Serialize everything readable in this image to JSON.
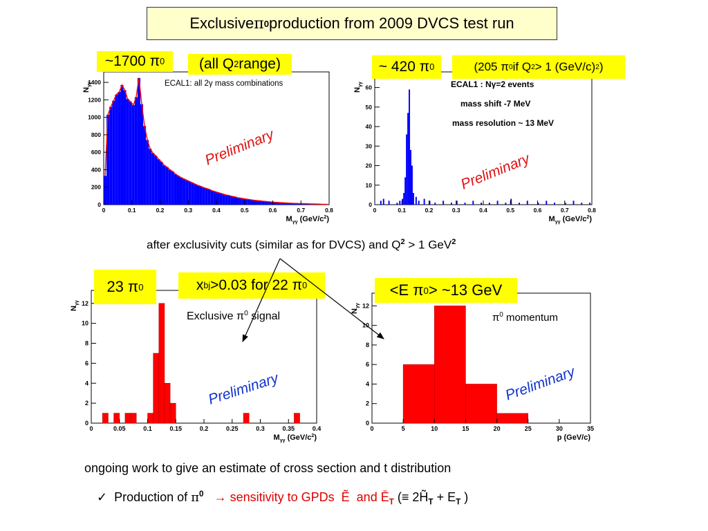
{
  "slide": {
    "title_prefix": "Exclusive ",
    "title_symbol": "π",
    "title_sup": "0",
    "title_suffix": " production from 2009 DVCS test run",
    "labels": {
      "c1_count": {
        "text": "~1700 π",
        "sup": "0"
      },
      "c1_range_a": "(all Q",
      "c1_range_sup": "2",
      "c1_range_b": " range)",
      "c2_count": {
        "text": "~ 420 π",
        "sup": "0"
      },
      "c2_note_a": "(205 π",
      "c2_note_sup0": "0",
      "c2_note_b": " if Q",
      "c2_note_sup1": "2",
      "c2_note_c": " > 1 (GeV/c)",
      "c2_note_sup2": "2",
      "c2_note_d": " )",
      "c3_count": {
        "text": "23 π",
        "sup": "0"
      },
      "c3_cut_x": "x",
      "c3_cut_sub": "bj",
      "c3_cut_rest": ">0.03 for 22 π",
      "c3_cut_sup": "0",
      "c4_energy": {
        "text": "<E π",
        "sup": "0",
        "rest": " > ~13 GeV"
      }
    },
    "mid_text": "after exclusivity cuts (similar as for DVCS) and Q",
    "mid_sup1": "2",
    "mid_text2": " > 1 GeV",
    "mid_sup2": "2",
    "bottom_text": "ongoing work to give an estimate of cross section and t distribution",
    "bullet": {
      "check": "✓",
      "prefix": "Production of ",
      "pi": "π",
      "pi_sup": "0",
      "arrow": "→",
      "sens": "sensitivity to GPDs",
      "e_tilde": "Ẽ",
      "and": "and",
      "e_bar": "Ē",
      "e_bar_sub": "T",
      "paren_a": "(≡ 2",
      "h_tilde": "H̃",
      "h_sub": "T",
      "plus": " + E",
      "e_sub": "T",
      "paren_b": " )"
    },
    "colors": {
      "blue_fill": "#0000ff",
      "red_fill": "#ff0000",
      "fit_line": "#ff0000",
      "label_bg": "#ffff00",
      "title_bg": "#ffffcc"
    }
  },
  "chart_data": [
    {
      "id": "c1",
      "type": "bar",
      "fill": "#0000ff",
      "xlabel_main": "M",
      "xlabel_sub": "γγ",
      "xlabel_unit": " (GeV/c",
      "xlabel_sup": "2",
      "xlabel_close": ")",
      "ylabel_main": "N",
      "ylabel_sub": "γγ",
      "xlim": [
        0,
        0.8
      ],
      "ylim": [
        0,
        1520
      ],
      "xticks": [
        "0",
        "0.1",
        "0.2",
        "0.3",
        "0.4",
        "0.5",
        "0.6",
        "0.7",
        "0.8"
      ],
      "xtick_vals": [
        0,
        0.1,
        0.2,
        0.3,
        0.4,
        0.5,
        0.6,
        0.7,
        0.8
      ],
      "yticks": [
        "0",
        "200",
        "400",
        "600",
        "800",
        "1000",
        "1200",
        "1400"
      ],
      "ytick_vals": [
        0,
        200,
        400,
        600,
        800,
        1000,
        1200,
        1400
      ],
      "inner_text": "ECAL1: all 2γ mass combinations",
      "preliminary": "Preliminary",
      "bin_width": 0.01,
      "x": [
        0.0,
        0.01,
        0.02,
        0.03,
        0.04,
        0.05,
        0.06,
        0.07,
        0.08,
        0.09,
        0.1,
        0.11,
        0.12,
        0.13,
        0.14,
        0.15,
        0.16,
        0.17,
        0.18,
        0.19,
        0.2,
        0.21,
        0.22,
        0.23,
        0.24,
        0.25,
        0.26,
        0.27,
        0.28,
        0.29,
        0.3,
        0.31,
        0.32,
        0.33,
        0.34,
        0.35,
        0.36,
        0.37,
        0.38,
        0.39,
        0.4,
        0.41,
        0.42,
        0.43,
        0.44,
        0.45,
        0.46,
        0.47,
        0.48,
        0.49,
        0.5,
        0.51,
        0.52,
        0.53,
        0.54,
        0.55,
        0.56,
        0.57,
        0.58,
        0.59,
        0.6,
        0.61,
        0.62,
        0.63,
        0.64,
        0.65,
        0.66,
        0.67,
        0.68,
        0.69,
        0.7,
        0.71,
        0.72,
        0.73,
        0.74,
        0.75,
        0.76,
        0.77,
        0.78,
        0.79
      ],
      "values": [
        330,
        1030,
        1120,
        1190,
        1260,
        1290,
        1370,
        1310,
        1210,
        1180,
        1140,
        1230,
        1450,
        1150,
        900,
        740,
        640,
        590,
        560,
        520,
        490,
        450,
        430,
        400,
        380,
        350,
        330,
        310,
        295,
        280,
        265,
        250,
        235,
        220,
        210,
        195,
        185,
        175,
        160,
        150,
        140,
        130,
        120,
        110,
        105,
        95,
        90,
        80,
        75,
        70,
        65,
        60,
        55,
        50,
        47,
        44,
        40,
        37,
        34,
        31,
        28,
        26,
        24,
        22,
        20,
        18,
        17,
        15,
        14,
        13,
        12,
        11,
        10,
        9,
        8,
        7,
        6,
        5,
        4,
        3
      ]
    },
    {
      "id": "c2",
      "type": "bar",
      "fill": "#0000ff",
      "xlabel_main": "M",
      "xlabel_sub": "γγ",
      "xlabel_unit": " (GeV/c",
      "xlabel_sup": "2",
      "xlabel_close": ")",
      "ylabel_main": "N",
      "ylabel_sub": "γγ",
      "xlim": [
        0,
        0.8
      ],
      "ylim": [
        0,
        68
      ],
      "xticks": [
        "0",
        "0.1",
        "0.2",
        "0.3",
        "0.4",
        "0.5",
        "0.6",
        "0.7",
        "0.8"
      ],
      "xtick_vals": [
        0,
        0.1,
        0.2,
        0.3,
        0.4,
        0.5,
        0.6,
        0.7,
        0.8
      ],
      "yticks": [
        "0",
        "10",
        "20",
        "30",
        "40",
        "50",
        "60"
      ],
      "ytick_vals": [
        0,
        10,
        20,
        30,
        40,
        50,
        60
      ],
      "inner_lines": [
        "ECAL1 : Nγ=2  events",
        "mass shift   -7 MeV",
        "mass resolution ~ 13 MeV"
      ],
      "preliminary": "Preliminary",
      "bin_width": 0.005,
      "x": [
        0.02,
        0.03,
        0.05,
        0.08,
        0.09,
        0.1,
        0.105,
        0.11,
        0.115,
        0.12,
        0.125,
        0.13,
        0.135,
        0.14,
        0.15,
        0.16,
        0.18,
        0.2,
        0.22,
        0.25,
        0.28,
        0.3,
        0.33,
        0.36,
        0.39,
        0.42,
        0.45,
        0.48,
        0.5,
        0.53,
        0.56,
        0.6,
        0.63,
        0.66,
        0.7,
        0.73,
        0.76,
        0.79
      ],
      "values": [
        2,
        3,
        2,
        1,
        2,
        3,
        6,
        14,
        36,
        47,
        59,
        28,
        20,
        6,
        4,
        2,
        3,
        2,
        1,
        2,
        1,
        2,
        1,
        2,
        1,
        1,
        2,
        1,
        3,
        1,
        2,
        1,
        2,
        1,
        1,
        2,
        1,
        1
      ]
    },
    {
      "id": "c3",
      "type": "bar",
      "fill": "#ff0000",
      "xlabel_main": "M",
      "xlabel_sub": "γγ",
      "xlabel_unit": " (GeV/c",
      "xlabel_sup": "2",
      "xlabel_close": ")",
      "ylabel_main": "N",
      "ylabel_sub": "γγ",
      "xlim": [
        0,
        0.4
      ],
      "ylim": [
        0,
        13.3
      ],
      "xticks": [
        "0",
        "0.05",
        "0.1",
        "0.15",
        "0.2",
        "0.25",
        "0.3",
        "0.35",
        "0.4"
      ],
      "xtick_vals": [
        0,
        0.05,
        0.1,
        0.15,
        0.2,
        0.25,
        0.3,
        0.35,
        0.4
      ],
      "yticks": [
        "0",
        "2",
        "4",
        "6",
        "8",
        "10",
        "12"
      ],
      "ytick_vals": [
        0,
        2,
        4,
        6,
        8,
        10,
        12
      ],
      "inner_text_a": "Exclusive π",
      "inner_text_sup": "0",
      "inner_text_b": " signal",
      "preliminary": "Preliminary",
      "bin_width": 0.01,
      "x": [
        0.02,
        0.04,
        0.06,
        0.07,
        0.1,
        0.11,
        0.12,
        0.13,
        0.14,
        0.27,
        0.36
      ],
      "values": [
        1,
        1,
        1,
        1,
        1,
        7,
        12,
        4,
        2,
        1,
        1
      ]
    },
    {
      "id": "c4",
      "type": "bar",
      "fill": "#ff0000",
      "xlabel_main": "p (GeV/c)",
      "ylabel_main": "N",
      "ylabel_sub": "γγ",
      "xlim": [
        0,
        35
      ],
      "ylim": [
        0,
        13.3
      ],
      "xticks": [
        "0",
        "5",
        "10",
        "15",
        "20",
        "25",
        "30",
        "35"
      ],
      "xtick_vals": [
        0,
        5,
        10,
        15,
        20,
        25,
        30,
        35
      ],
      "yticks": [
        "0",
        "2",
        "4",
        "6",
        "8",
        "10",
        "12"
      ],
      "ytick_vals": [
        0,
        2,
        4,
        6,
        8,
        10,
        12
      ],
      "inner_text_a": "π",
      "inner_text_sup": "0",
      "inner_text_b": " momentum",
      "preliminary": "Preliminary",
      "bin_width": 5,
      "x": [
        5,
        10,
        15,
        20
      ],
      "values": [
        6,
        12,
        4,
        1
      ]
    }
  ]
}
